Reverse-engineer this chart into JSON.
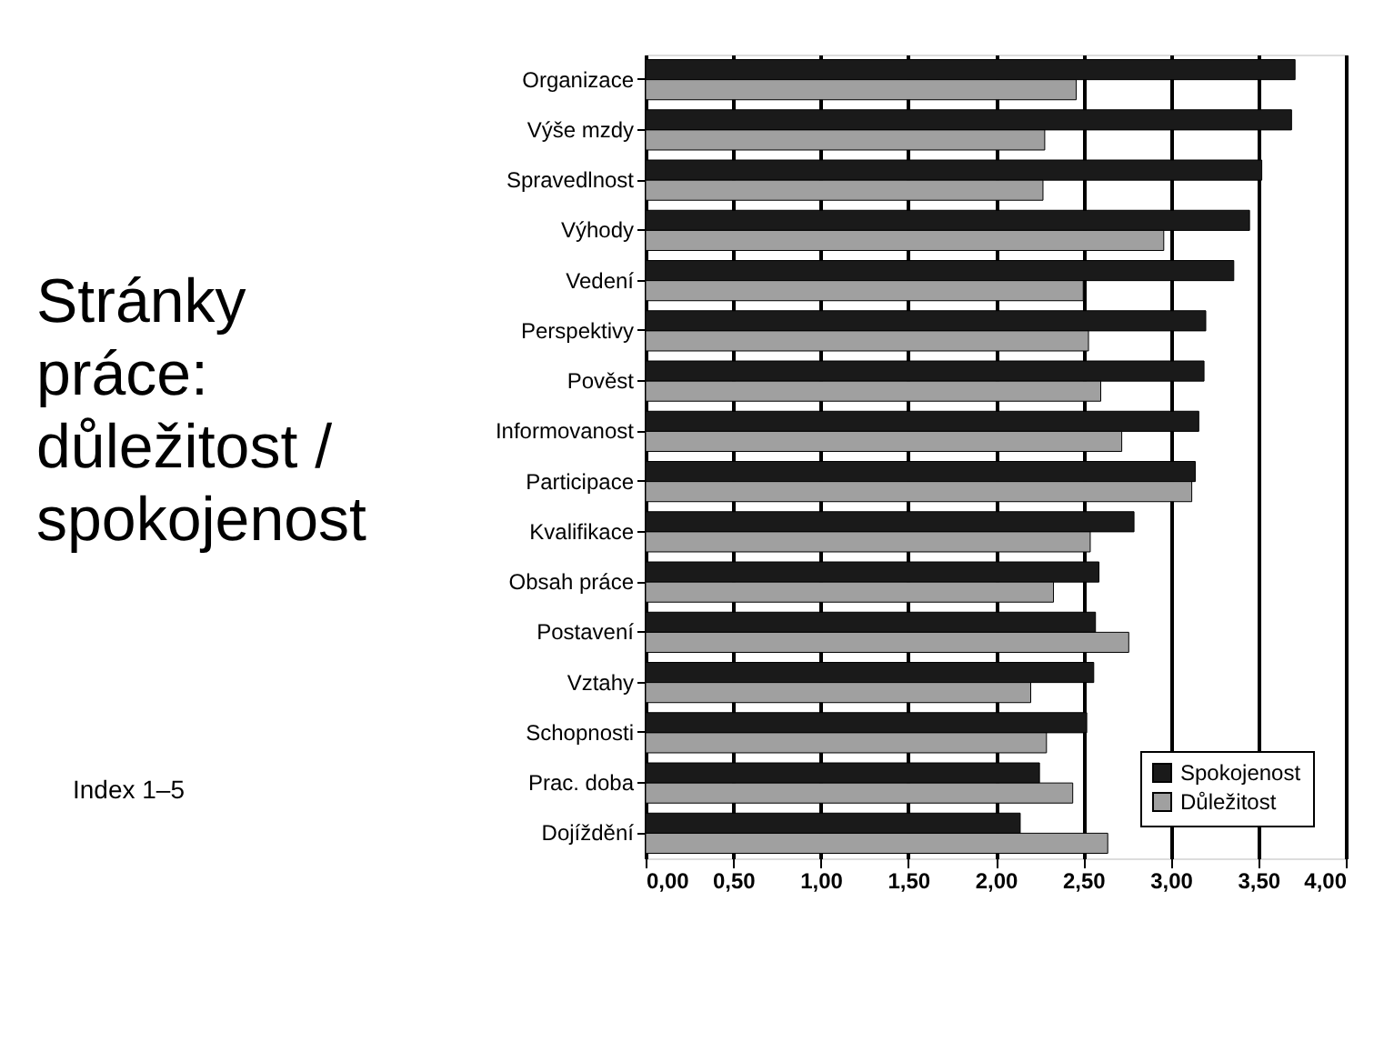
{
  "chart_data": {
    "type": "bar",
    "orientation": "horizontal",
    "title": "Stránky práce: důležitost / spokojenost",
    "categories": [
      "Organizace",
      "Výše mzdy",
      "Spravedlnost",
      "Výhody",
      "Vedení",
      "Perspektivy",
      "Pověst",
      "Informovanost",
      "Participace",
      "Kvalifikace",
      "Obsah práce",
      "Postavení",
      "Vztahy",
      "Schopnosti",
      "Prac. doba",
      "Dojíždění"
    ],
    "series": [
      {
        "name": "Spokojenost",
        "color": "#1a1a1a",
        "values": [
          3.71,
          3.69,
          3.52,
          3.45,
          3.36,
          3.2,
          3.19,
          3.16,
          3.14,
          2.79,
          2.59,
          2.57,
          2.56,
          2.52,
          2.25,
          2.14
        ]
      },
      {
        "name": "Důležitost",
        "color": "#a0a0a0",
        "values": [
          2.46,
          2.28,
          2.27,
          2.96,
          2.5,
          2.53,
          2.6,
          2.72,
          3.12,
          2.54,
          2.33,
          2.76,
          2.2,
          2.29,
          2.44,
          2.64
        ]
      }
    ],
    "xlim": [
      0,
      4
    ],
    "xticks": [
      {
        "value": 0,
        "label": "0,00"
      },
      {
        "value": 0.5,
        "label": "0,50"
      },
      {
        "value": 1,
        "label": "1,00"
      },
      {
        "value": 1.5,
        "label": "1,50"
      },
      {
        "value": 2,
        "label": "2,00"
      },
      {
        "value": 2.5,
        "label": "2,50"
      },
      {
        "value": 3,
        "label": "3,00"
      },
      {
        "value": 3.5,
        "label": "3,50"
      },
      {
        "value": 4,
        "label": "4,00"
      }
    ],
    "grid": "x",
    "legend": "bottom right",
    "annotations": [
      "Index 1–5"
    ]
  }
}
